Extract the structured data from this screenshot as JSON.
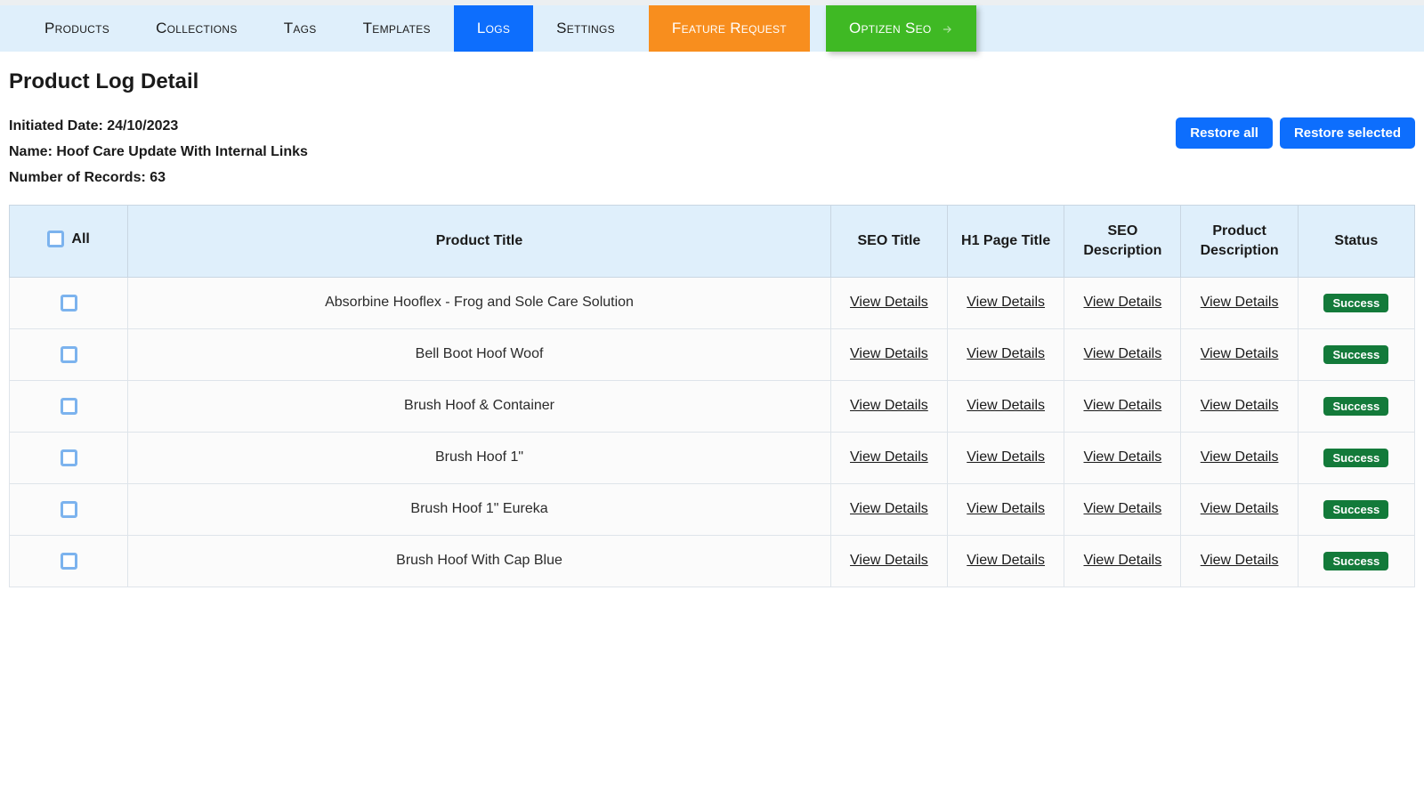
{
  "nav": {
    "items": [
      {
        "label": "Products",
        "active": false
      },
      {
        "label": "Collections",
        "active": false
      },
      {
        "label": "Tags",
        "active": false
      },
      {
        "label": "Templates",
        "active": false
      },
      {
        "label": "Logs",
        "active": true
      },
      {
        "label": "Settings",
        "active": false
      }
    ],
    "feature_request_label": "Feature Request",
    "optizen_label": "Optizen Seo"
  },
  "page_title": "Product Log Detail",
  "meta": {
    "initiated_label": "Initiated Date:",
    "initiated_value": "24/10/2023",
    "name_label": "Name:",
    "name_value": "Hoof Care Update With Internal Links",
    "records_label": "Number of Records:",
    "records_value": "63"
  },
  "actions": {
    "restore_all": "Restore all",
    "restore_selected": "Restore selected"
  },
  "table": {
    "header_all_label": "All",
    "columns": [
      "Product Title",
      "SEO Title",
      "H1 Page Title",
      "SEO Description",
      "Product Description",
      "Status"
    ],
    "view_details_label": "View Details",
    "status_success_label": "Success",
    "rows": [
      {
        "title": "Absorbine Hooflex - Frog and Sole Care Solution",
        "status": "Success"
      },
      {
        "title": "Bell Boot Hoof Woof",
        "status": "Success"
      },
      {
        "title": "Brush Hoof & Container",
        "status": "Success"
      },
      {
        "title": "Brush Hoof 1\"",
        "status": "Success"
      },
      {
        "title": "Brush Hoof 1\" Eureka",
        "status": "Success"
      },
      {
        "title": "Brush Hoof With Cap Blue",
        "status": "Success"
      }
    ]
  },
  "colors": {
    "nav_bg": "#dfeffb",
    "active_blue": "#0d6efd",
    "feature_orange": "#f88e1e",
    "optizen_green": "#3fb924",
    "table_header_bg": "#dfeffb",
    "table_border": "#c9d6e2",
    "badge_success_bg": "#137a3a",
    "checkbox_border": "#7cb3ee"
  }
}
